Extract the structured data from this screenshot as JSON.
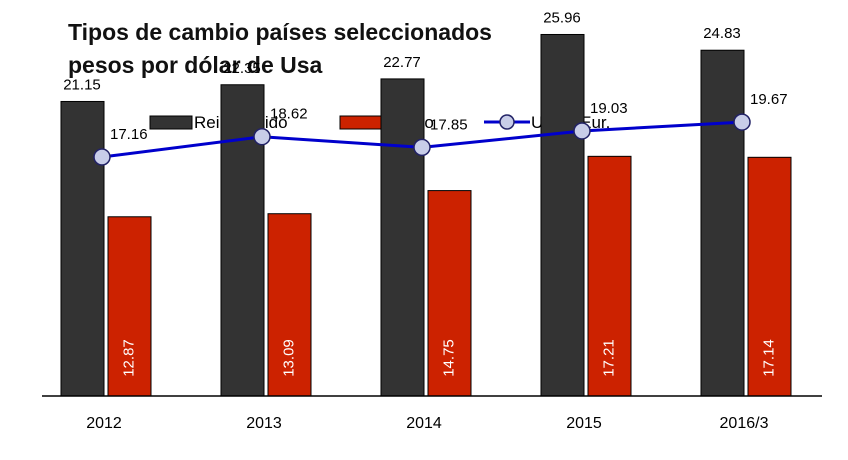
{
  "chart_data": {
    "type": "bar",
    "title": "Tipos de cambio países seleccionados",
    "subtitle": "pesos por dólar de Usa",
    "categories": [
      "2012",
      "2013",
      "2014",
      "2015",
      "2016/3"
    ],
    "series": [
      {
        "name": "Reino Unido",
        "type": "bar",
        "color": "#333333",
        "values": [
          21.15,
          22.35,
          22.77,
          25.96,
          24.83
        ]
      },
      {
        "name": "México",
        "type": "bar",
        "color": "#cc2200",
        "values": [
          12.87,
          13.09,
          14.75,
          17.21,
          17.14
        ]
      },
      {
        "name": "Unión Eur.",
        "type": "line",
        "color": "#0000cc",
        "values": [
          17.16,
          18.62,
          17.85,
          19.03,
          19.67
        ]
      }
    ],
    "ylim": [
      0,
      27
    ],
    "grid": false,
    "legend": "top"
  }
}
